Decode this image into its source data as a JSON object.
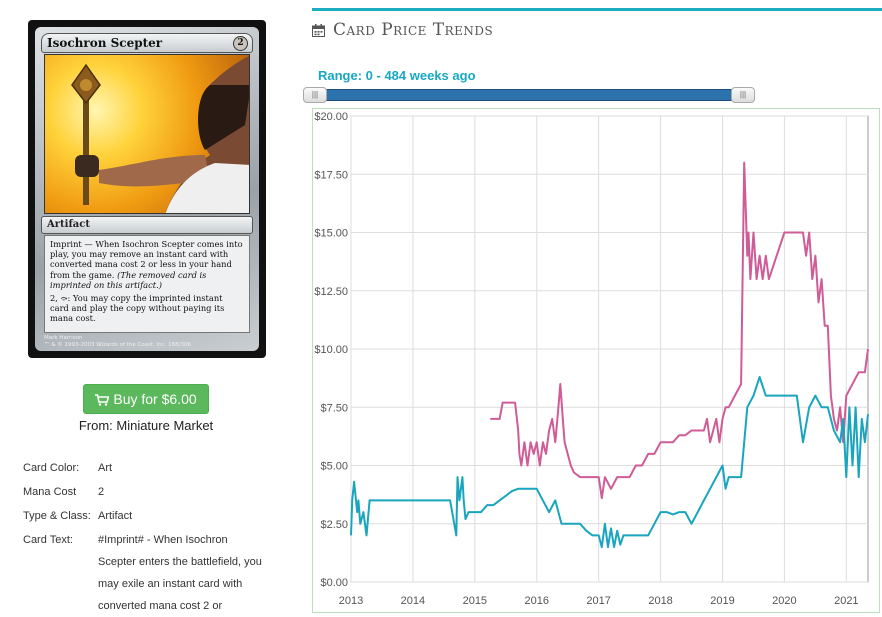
{
  "card": {
    "name": "Isochron Scepter",
    "mana_symbol": "2",
    "type_line": "Artifact",
    "rules_text_1": "Imprint — When Isochron Scepter comes into play, you may remove an instant card with converted mana cost 2 or less in your hand from the game.",
    "reminder_text": "(The removed card is imprinted on this artifact.)",
    "rules_text_2": "2, ⤼: You may copy the imprinted instant card and play the copy without paying its mana cost.",
    "artist": "Mark Harrison",
    "copyright": "™ & © 1993-2003 Wizards of the Coast, Inc. 188/306"
  },
  "buy": {
    "label": "Buy for $6.00",
    "icon": "shopping-cart-icon"
  },
  "from_label": "From: Miniature Market",
  "details": {
    "color_label": "Card Color:",
    "color_value": "Art",
    "mana_label": "Mana Cost",
    "mana_value": "2",
    "type_label": "Type & Class:",
    "type_value": "Artifact",
    "text_label": "Card Text:",
    "text_value": "#Imprint# - When Isochron Scepter enters the battlefield, you may exile an instant card with converted mana cost 2 or"
  },
  "section": {
    "title": "Card Price Trends",
    "icon": "calendar-icon"
  },
  "range": {
    "label": "Range: 0 - 484 weeks ago",
    "min_weeks": 0,
    "max_weeks": 484
  },
  "colors": {
    "accent": "#1aaebf",
    "pink_series": "#cf5b97",
    "teal_series": "#19a5be",
    "buy_green": "#5cb85c",
    "slider_blue": "#2c72ad"
  },
  "chart_data": {
    "type": "line",
    "y_ticks": [
      "$0.00",
      "$2.50",
      "$5.00",
      "$7.50",
      "$10.00",
      "$12.50",
      "$15.00",
      "$17.50",
      "$20.00"
    ],
    "x_ticks": [
      "2013",
      "2014",
      "2015",
      "2016",
      "2017",
      "2018",
      "2019",
      "2020",
      "2021"
    ],
    "ylim": [
      0,
      20
    ],
    "xlim": [
      2013.0,
      2021.35
    ],
    "grid": true,
    "series": [
      {
        "color": "#cf5b97",
        "x": [
          2015.25,
          2015.4,
          2015.45,
          2015.5,
          2015.65,
          2015.7,
          2015.72,
          2015.75,
          2015.8,
          2015.85,
          2015.9,
          2015.95,
          2016.0,
          2016.05,
          2016.1,
          2016.15,
          2016.2,
          2016.25,
          2016.3,
          2016.35,
          2016.38,
          2016.42,
          2016.45,
          2016.5,
          2016.55,
          2016.6,
          2016.7,
          2016.8,
          2016.9,
          2017.0,
          2017.05,
          2017.1,
          2017.2,
          2017.3,
          2017.4,
          2017.5,
          2017.6,
          2017.7,
          2017.8,
          2017.9,
          2018.0,
          2018.1,
          2018.2,
          2018.3,
          2018.4,
          2018.5,
          2018.6,
          2018.7,
          2018.75,
          2018.8,
          2018.85,
          2018.9,
          2018.95,
          2019.0,
          2019.05,
          2019.1,
          2019.2,
          2019.3,
          2019.35,
          2019.4,
          2019.42,
          2019.45,
          2019.5,
          2019.55,
          2019.6,
          2019.65,
          2019.7,
          2019.75,
          2020.0,
          2020.3,
          2020.35,
          2020.4,
          2020.45,
          2020.5,
          2020.55,
          2020.6,
          2020.65,
          2020.7,
          2020.75,
          2020.8,
          2020.85,
          2020.9,
          2020.95,
          2021.0,
          2021.1,
          2021.2,
          2021.3,
          2021.35
        ],
        "y": [
          7.0,
          7.0,
          7.7,
          7.7,
          7.7,
          6.5,
          5.5,
          5.0,
          6.0,
          5.0,
          6.0,
          5.5,
          6.0,
          5.0,
          6.0,
          5.5,
          6.5,
          7.0,
          6.0,
          7.5,
          8.5,
          7.0,
          6.0,
          5.5,
          5.0,
          4.7,
          4.5,
          4.5,
          4.5,
          4.5,
          3.6,
          4.5,
          4.0,
          4.5,
          4.5,
          4.5,
          5.0,
          5.0,
          5.5,
          5.5,
          6.0,
          6.0,
          6.0,
          6.3,
          6.3,
          6.5,
          6.5,
          6.5,
          7.0,
          6.0,
          6.5,
          7.0,
          6.0,
          7.0,
          7.5,
          7.5,
          8.0,
          8.5,
          18.0,
          14.0,
          15.0,
          13.0,
          15.0,
          13.0,
          14.0,
          13.0,
          14.0,
          13.0,
          15.0,
          15.0,
          14.0,
          15.0,
          13.0,
          14.0,
          12.0,
          13.0,
          11.0,
          11.0,
          8.0,
          7.0,
          6.5,
          7.5,
          6.0,
          8.0,
          8.5,
          9.0,
          9.0,
          10.0
        ]
      },
      {
        "color": "#19a5be",
        "x": [
          2013.0,
          2013.02,
          2013.05,
          2013.1,
          2013.12,
          2013.15,
          2013.2,
          2013.25,
          2013.3,
          2013.35,
          2013.4,
          2013.5,
          2013.6,
          2013.7,
          2013.8,
          2013.9,
          2014.0,
          2014.1,
          2014.2,
          2014.3,
          2014.4,
          2014.5,
          2014.6,
          2014.7,
          2014.72,
          2014.75,
          2014.8,
          2014.82,
          2014.85,
          2014.9,
          2014.95,
          2015.0,
          2015.1,
          2015.2,
          2015.3,
          2015.4,
          2015.5,
          2015.6,
          2015.7,
          2015.8,
          2015.9,
          2016.0,
          2016.2,
          2016.3,
          2016.4,
          2016.5,
          2016.6,
          2016.7,
          2016.8,
          2016.9,
          2017.0,
          2017.05,
          2017.1,
          2017.15,
          2017.2,
          2017.25,
          2017.3,
          2017.35,
          2017.4,
          2017.5,
          2017.6,
          2017.7,
          2017.8,
          2017.9,
          2018.0,
          2018.1,
          2018.2,
          2018.3,
          2018.4,
          2018.5,
          2018.6,
          2018.7,
          2018.8,
          2018.9,
          2019.0,
          2019.05,
          2019.1,
          2019.2,
          2019.3,
          2019.4,
          2019.5,
          2019.6,
          2019.7,
          2019.8,
          2019.9,
          2020.0,
          2020.1,
          2020.2,
          2020.3,
          2020.4,
          2020.5,
          2020.6,
          2020.7,
          2020.8,
          2020.9,
          2020.95,
          2021.0,
          2021.05,
          2021.1,
          2021.15,
          2021.2,
          2021.25,
          2021.3,
          2021.35
        ],
        "y": [
          2.0,
          3.5,
          4.3,
          3.0,
          3.5,
          2.5,
          3.0,
          2.0,
          3.5,
          3.5,
          3.5,
          3.5,
          3.5,
          3.5,
          3.5,
          3.5,
          3.5,
          3.5,
          3.5,
          3.5,
          3.5,
          3.5,
          3.5,
          2.0,
          4.5,
          3.5,
          4.5,
          3.5,
          2.7,
          3.0,
          3.0,
          3.0,
          3.0,
          3.3,
          3.3,
          3.5,
          3.7,
          3.9,
          4.0,
          4.0,
          4.0,
          4.0,
          3.0,
          3.5,
          2.5,
          2.5,
          2.5,
          2.5,
          2.2,
          2.0,
          2.0,
          1.5,
          2.5,
          1.5,
          2.3,
          1.5,
          2.2,
          1.6,
          2.0,
          2.0,
          2.0,
          2.0,
          2.0,
          2.5,
          3.0,
          3.0,
          2.9,
          3.0,
          3.0,
          2.5,
          3.0,
          3.5,
          4.0,
          4.5,
          5.0,
          4.0,
          4.5,
          4.5,
          4.5,
          7.5,
          8.0,
          8.8,
          8.0,
          8.0,
          8.0,
          8.0,
          8.0,
          8.0,
          6.0,
          7.5,
          8.0,
          7.5,
          7.5,
          6.5,
          6.0,
          7.0,
          4.5,
          7.5,
          5.0,
          7.5,
          4.5,
          7.0,
          6.0,
          7.2
        ]
      }
    ]
  }
}
